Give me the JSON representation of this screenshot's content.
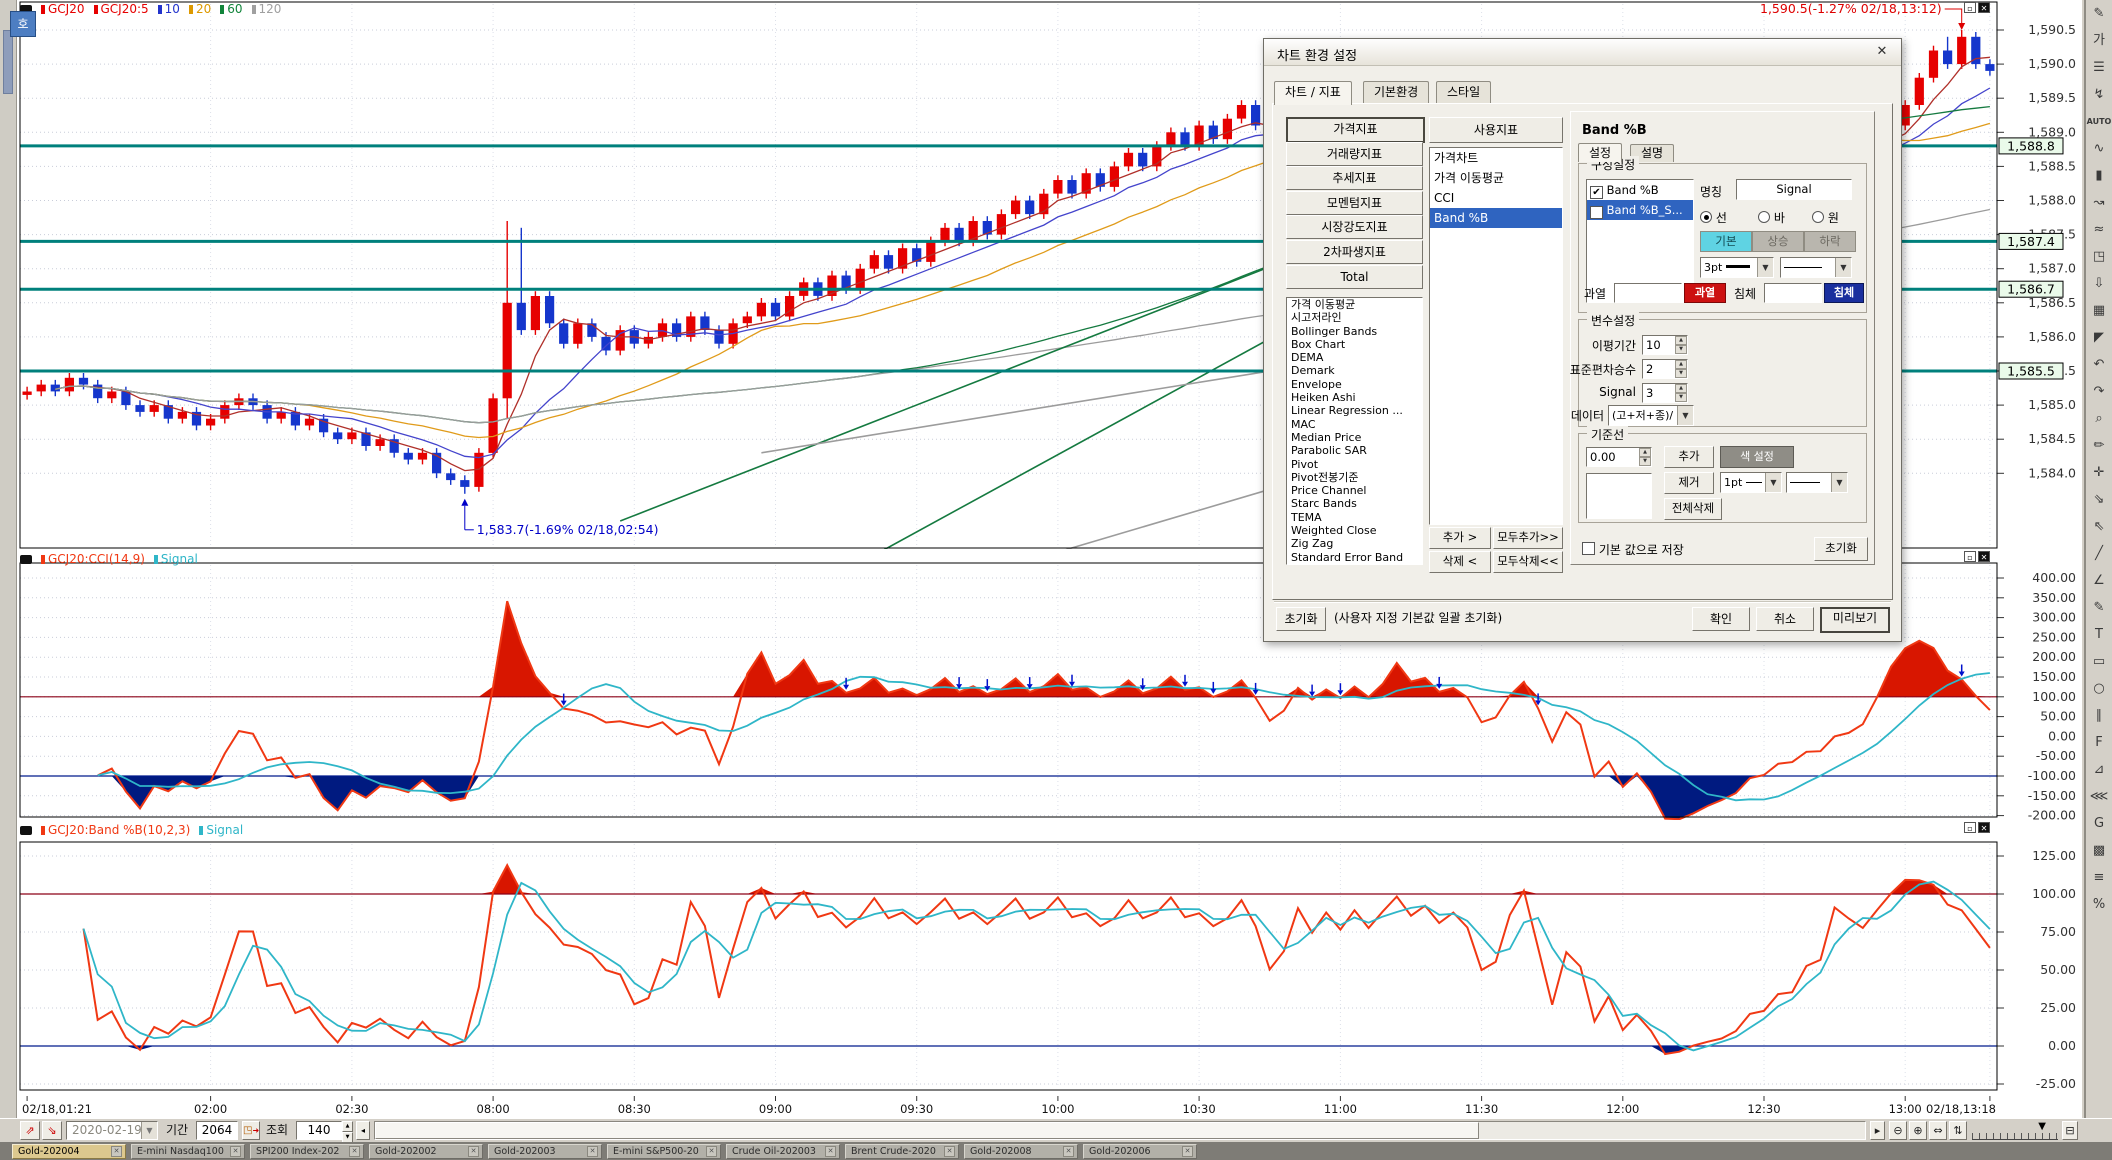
{
  "app": {
    "favorite_icon_label": "호"
  },
  "colors": {
    "up": "#e60000",
    "down": "#1536cc",
    "teal": "#00807c",
    "grid": "#c9cdd9",
    "cci": "#f03813",
    "signal": "#2fb6c8",
    "fill_hot": "#d81600",
    "fill_cold": "#001a80",
    "ref_hot": "#8c0016",
    "ref_cold": "#001a8c",
    "annotation_high": "#dd0000",
    "annotation_low": "#0000c8"
  },
  "main_chart": {
    "legend": [
      {
        "label": "GCJ20",
        "color": "#e60000"
      },
      {
        "label": "GCJ20:5",
        "color": "#e60000"
      },
      {
        "label": "10",
        "color": "#2233cc"
      },
      {
        "label": "20",
        "color": "#dd9900"
      },
      {
        "label": "60",
        "color": "#11843a"
      },
      {
        "label": "120",
        "color": "#a0a0a0"
      }
    ],
    "ma": [
      {
        "period": 5,
        "color": "#b0302a"
      },
      {
        "period": 10,
        "color": "#4444cc"
      },
      {
        "period": 20,
        "color": "#e09b1a"
      },
      {
        "period": 60,
        "color": "#157a40"
      },
      {
        "period": 120,
        "color": "#9c9c9c"
      }
    ]
  },
  "chart_data": [
    {
      "type": "candlestick",
      "symbol": "GCJ20",
      "interval_minutes": 3,
      "first_open": 1585.15,
      "closes": [
        1585.2,
        1585.3,
        1585.2,
        1585.4,
        1585.3,
        1585.1,
        1585.2,
        1585.0,
        1584.9,
        1585.0,
        1584.8,
        1584.9,
        1584.7,
        1584.8,
        1585.0,
        1585.1,
        1585.0,
        1584.8,
        1584.9,
        1584.7,
        1584.8,
        1584.6,
        1584.5,
        1584.6,
        1584.4,
        1584.5,
        1584.3,
        1584.2,
        1584.3,
        1584.0,
        1583.9,
        1583.8,
        1584.3,
        1585.1,
        1586.5,
        1586.1,
        1586.6,
        1586.2,
        1585.9,
        1586.2,
        1586.0,
        1585.8,
        1586.1,
        1585.9,
        1586.0,
        1586.2,
        1586.0,
        1586.3,
        1586.1,
        1585.9,
        1586.2,
        1586.3,
        1586.5,
        1586.3,
        1586.6,
        1586.8,
        1586.6,
        1586.9,
        1586.7,
        1587.0,
        1587.2,
        1587.0,
        1587.3,
        1587.1,
        1587.4,
        1587.6,
        1587.4,
        1587.7,
        1587.5,
        1587.8,
        1588.0,
        1587.8,
        1588.1,
        1588.3,
        1588.1,
        1588.4,
        1588.2,
        1588.5,
        1588.7,
        1588.5,
        1588.8,
        1589.0,
        1588.8,
        1589.1,
        1588.9,
        1589.2,
        1589.4,
        1589.1,
        1588.9,
        1589.2,
        1589.4,
        1589.2,
        1589.5,
        1589.3,
        1589.6,
        1589.4,
        1589.7,
        1589.9,
        1589.7,
        1590.0,
        1589.8,
        1590.1,
        1589.9,
        1589.7,
        1589.9,
        1590.1,
        1590.2,
        1589.9,
        1589.8,
        1590.1,
        1589.9,
        1589.7,
        1589.9,
        1589.6,
        1589.8,
        1589.5,
        1589.3,
        1589.1,
        1588.9,
        1588.7,
        1588.5,
        1588.4,
        1588.6,
        1588.4,
        1588.7,
        1588.5,
        1588.8,
        1588.6,
        1588.9,
        1588.7,
        1588.8,
        1588.9,
        1589.1,
        1589.4,
        1589.8,
        1590.2,
        1590.0,
        1590.4,
        1590.0,
        1589.9
      ],
      "wick_overrides": {
        "31": {
          "low": 1583.7
        },
        "34": {
          "high": 1587.7,
          "low": 1584.8
        },
        "35": {
          "high": 1587.6
        },
        "136": {
          "high": 1590.4
        },
        "137": {
          "high": 1590.5
        }
      },
      "y_ticks": [
        "1,590.5",
        "1,590.0",
        "1,589.5",
        "1,589.0",
        "1,588.5",
        "1,588.0",
        "1,587.5",
        "1,587.0",
        "1,586.5",
        "1,586.0",
        "1,585.5",
        "1,585.0",
        "1,584.5",
        "1,584.0"
      ],
      "x_ticks": [
        {
          "label": "02/18,01:21",
          "bar": 0,
          "align": "start"
        },
        {
          "label": "02:00",
          "bar": 13,
          "align": "middle"
        },
        {
          "label": "02:30",
          "bar": 23,
          "align": "middle"
        },
        {
          "label": "08:00",
          "bar": 33,
          "align": "middle"
        },
        {
          "label": "08:30",
          "bar": 43,
          "align": "middle"
        },
        {
          "label": "09:00",
          "bar": 53,
          "align": "middle"
        },
        {
          "label": "09:30",
          "bar": 63,
          "align": "middle"
        },
        {
          "label": "10:00",
          "bar": 73,
          "align": "middle"
        },
        {
          "label": "10:30",
          "bar": 83,
          "align": "middle"
        },
        {
          "label": "11:00",
          "bar": 93,
          "align": "middle"
        },
        {
          "label": "11:30",
          "bar": 103,
          "align": "middle"
        },
        {
          "label": "12:00",
          "bar": 113,
          "align": "middle"
        },
        {
          "label": "12:30",
          "bar": 123,
          "align": "middle"
        },
        {
          "label": "13:00",
          "bar": 133,
          "align": "middle"
        },
        {
          "label": "02/18,13:18",
          "bar": 139,
          "align": "end"
        }
      ],
      "drawn_hlines": [
        {
          "price": 1588.8,
          "label": "1,588.8"
        },
        {
          "price": 1587.4,
          "label": "1,587.4"
        },
        {
          "price": 1586.7,
          "label": "1,586.7"
        },
        {
          "price": 1585.5,
          "label": "1,585.5"
        }
      ],
      "drawn_trendlines": [
        {
          "from": {
            "bar": 42,
            "price": 1583.3
          },
          "to": {
            "bar": 100,
            "price": 1588.0
          },
          "color": "#157a40"
        },
        {
          "from": {
            "bar": 60,
            "price": 1582.8
          },
          "to": {
            "bar": 90,
            "price": 1586.2
          },
          "color": "#157a40"
        },
        {
          "from": {
            "bar": 52,
            "price": 1584.3
          },
          "to": {
            "bar": 100,
            "price": 1585.9
          },
          "color": "#9c9c9c"
        },
        {
          "from": {
            "bar": 69,
            "price": 1582.6
          },
          "to": {
            "bar": 100,
            "price": 1584.5
          },
          "color": "#9c9c9c"
        }
      ],
      "high_marker": {
        "bar": 137,
        "text": "1,590.5(-1.27% 02/18,13:12)"
      },
      "low_marker": {
        "bar": 31,
        "text": "1,583.7(-1.69% 02/18,02:54)"
      }
    },
    {
      "type": "line",
      "name": "CCI",
      "params": "(14,9)",
      "legend": [
        {
          "label": "GCJ20:CCI(14,9)",
          "color": "#f03813"
        },
        {
          "label": "Signal",
          "color": "#2fb6c8"
        }
      ],
      "y_ticks": [
        "400.00",
        "350.00",
        "300.00",
        "250.00",
        "200.00",
        "150.00",
        "100.00",
        "50.00",
        "0.00",
        "-50.00",
        "-100.00",
        "-150.00",
        "-200.00"
      ],
      "ref_lines": [
        100,
        -100
      ],
      "derived": "CCI(14) of (H+L+C)/3 with 9-period signal, computed from the candle series"
    },
    {
      "type": "line",
      "name": "Band %B",
      "params": "(10,2,3)",
      "legend": [
        {
          "label": "GCJ20:Band %B(10,2,3)",
          "color": "#f03813"
        },
        {
          "label": "Signal",
          "color": "#2fb6c8"
        }
      ],
      "y_ticks": [
        "125.00",
        "100.00",
        "75.00",
        "50.00",
        "25.00",
        "0.00",
        "-25.00"
      ],
      "ref_lines": [
        100,
        0
      ],
      "derived": "Bollinger %B(10,2) of (H+L+C)/3 with 3-period signal, computed from the candle series"
    }
  ],
  "bottom_toolbar": {
    "date": "2020-02-19",
    "period_label": "기간",
    "period_value": "2064",
    "query_label": "조회",
    "query_value": "140"
  },
  "taskbar": {
    "tabs": [
      {
        "label": "Gold-202004",
        "active": true
      },
      {
        "label": "E-mini Nasdaq100",
        "active": false
      },
      {
        "label": "SPI200 Index-202",
        "active": false
      },
      {
        "label": "Gold-202002",
        "active": false
      },
      {
        "label": "Gold-202003",
        "active": false
      },
      {
        "label": "E-mini S&P500-20",
        "active": false
      },
      {
        "label": "Crude Oil-202003",
        "active": false
      },
      {
        "label": "Brent Crude-2020",
        "active": false
      },
      {
        "label": "Gold-202008",
        "active": false
      },
      {
        "label": "Gold-202006",
        "active": false
      }
    ]
  },
  "right_toolbar": {
    "icons": [
      {
        "name": "property-tool-icon",
        "glyph": "✎"
      },
      {
        "name": "price-tool-icon",
        "glyph": "가"
      },
      {
        "name": "indicator-list-icon",
        "glyph": "☰"
      },
      {
        "name": "chart-add-icon",
        "glyph": "↯"
      },
      {
        "name": "auto-scale-icon",
        "glyph": "AUTO"
      },
      {
        "name": "trend-wave-icon",
        "glyph": "∿"
      },
      {
        "name": "candle-tool-icon",
        "glyph": "▮"
      },
      {
        "name": "zigzag-icon",
        "glyph": "↝"
      },
      {
        "name": "wave-icon",
        "glyph": "≈"
      },
      {
        "name": "region-icon",
        "glyph": "◳"
      },
      {
        "name": "download-icon",
        "glyph": "⇩"
      },
      {
        "name": "grid-icon",
        "glyph": "▦"
      },
      {
        "name": "corner-icon",
        "glyph": "◤"
      },
      {
        "name": "undo-icon",
        "glyph": "↶"
      },
      {
        "name": "redo-icon",
        "glyph": "↷"
      },
      {
        "name": "zoom-icon",
        "glyph": "⌕"
      },
      {
        "name": "draw-icon",
        "glyph": "✏"
      },
      {
        "name": "crosshair-icon",
        "glyph": "✛"
      },
      {
        "name": "arrow-se-icon",
        "glyph": "⇘"
      },
      {
        "name": "arrow-nw-icon",
        "glyph": "⇖"
      },
      {
        "name": "line-tool-icon",
        "glyph": "╱"
      },
      {
        "name": "angle-tool-icon",
        "glyph": "∠"
      },
      {
        "name": "pencil-icon",
        "glyph": "✎"
      },
      {
        "name": "text-tool-icon",
        "glyph": "T"
      },
      {
        "name": "rect-tool-icon",
        "glyph": "▭"
      },
      {
        "name": "ellipse-tool-icon",
        "glyph": "○"
      },
      {
        "name": "parallel-lines-icon",
        "glyph": "∥"
      },
      {
        "name": "fibonacci-icon",
        "glyph": "F"
      },
      {
        "name": "triangle-tool-icon",
        "glyph": "⊿"
      },
      {
        "name": "eraser-all-icon",
        "glyph": "⋘"
      },
      {
        "name": "gann-tool-icon",
        "glyph": "G"
      },
      {
        "name": "hatch-tool-icon",
        "glyph": "▩"
      },
      {
        "name": "levels-tool-icon",
        "glyph": "≡"
      },
      {
        "name": "percent-tool-icon",
        "glyph": "%"
      }
    ]
  },
  "dialog": {
    "title": "차트 환경 설정",
    "close": "✕",
    "tabs": [
      "차트 / 지표",
      "기본환경",
      "스타일"
    ],
    "categories": [
      "가격지표",
      "거래량지표",
      "추세지표",
      "모멘텀지표",
      "시장강도지표",
      "2차파생지표",
      "Total"
    ],
    "indicator_list": [
      "가격 이동평균",
      "시고저라인",
      "Bollinger Bands",
      "Box Chart",
      "DEMA",
      "Demark",
      "Envelope",
      "Heiken Ashi",
      "Linear Regression ...",
      "MAC",
      "Median Price",
      "Parabolic SAR",
      "Pivot",
      "Pivot전봉기준",
      "Price Channel",
      "Starc Bands",
      "TEMA",
      "Weighted Close",
      "Zig Zag",
      "Standard Error Band"
    ],
    "used_header": "사용지표",
    "used_list": [
      {
        "label": "가격차트",
        "selected": false
      },
      {
        "label": "가격 이동평균",
        "selected": false
      },
      {
        "label": "CCI",
        "selected": false
      },
      {
        "label": "Band %B",
        "selected": true
      }
    ],
    "add": "추가 >",
    "add_all": "모두추가>>",
    "remove": "삭제 <",
    "remove_all": "모두삭제<<",
    "panel": {
      "title": "Band %B",
      "tabs": [
        "설정",
        "설명"
      ],
      "group_config": "구성설정",
      "series": [
        {
          "label": "Band %B",
          "checked": true,
          "selected": false
        },
        {
          "label": "Band %B_S...",
          "checked": true,
          "selected": true
        }
      ],
      "name_label": "명칭",
      "name_value": "Signal",
      "radios": [
        "선",
        "바",
        "원"
      ],
      "segments": [
        "기본",
        "상승",
        "하락"
      ],
      "line_width": "3pt",
      "overheat_label": "과열",
      "overheat_button": "과열",
      "oversold_label": "침체",
      "oversold_button": "침체",
      "group_params": "변수설정",
      "params": [
        {
          "label": "이평기간",
          "value": "10"
        },
        {
          "label": "표준편차승수",
          "value": "2"
        },
        {
          "label": "Signal",
          "value": "3"
        }
      ],
      "data_label": "데이터",
      "data_value": "(고+저+종)/",
      "group_baseline": "기준선",
      "baseline_value": "0.00",
      "add": "추가",
      "color_setting": "색 설정",
      "remove": "제거",
      "ref_width": "1pt",
      "delete_all": "전체삭제",
      "save_default": "기본 값으로 저장",
      "reset": "초기화"
    },
    "footer": {
      "reset": "초기화",
      "note": "(사용자 지정 기본값 일괄 초기화)",
      "ok": "확인",
      "cancel": "취소",
      "preview": "미리보기"
    }
  }
}
